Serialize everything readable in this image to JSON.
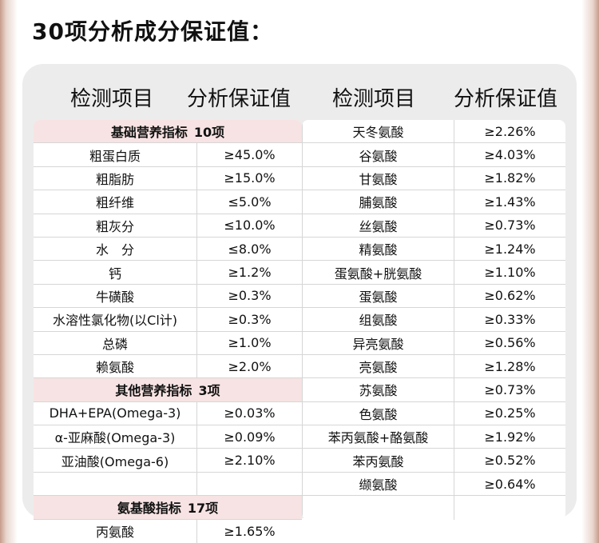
{
  "title": "30项分析成分保证值：",
  "header": {
    "col1": "检测项目",
    "col2": "分析保证值",
    "col3": "检测项目",
    "col4": "分析保证值"
  },
  "left": {
    "section_basic": {
      "name": "基础营养指标",
      "count": "10项"
    },
    "basic": [
      {
        "item": "粗蛋白质",
        "value": "≥45.0%"
      },
      {
        "item": "粗脂肪",
        "value": "≥15.0%"
      },
      {
        "item": "粗纤维",
        "value": "≤5.0%"
      },
      {
        "item": "粗灰分",
        "value": "≤10.0%"
      },
      {
        "item": "水　分",
        "value": "≤8.0%"
      },
      {
        "item": "钙",
        "value": "≥1.2%"
      },
      {
        "item": "牛磺酸",
        "value": "≥0.3%"
      },
      {
        "item": "水溶性氯化物(以Cl计)",
        "value": "≥0.3%"
      },
      {
        "item": "总磷",
        "value": "≥1.0%"
      },
      {
        "item": "赖氨酸",
        "value": "≥2.0%"
      }
    ],
    "section_other": {
      "name": "其他营养指标",
      "count": "3项"
    },
    "other": [
      {
        "item": "DHA+EPA(Omega-3)",
        "value": "≥0.03%"
      },
      {
        "item": "α-亚麻酸(Omega-3)",
        "value": "≥0.09%"
      },
      {
        "item": "亚油酸(Omega-6)",
        "value": "≥2.10%"
      }
    ],
    "section_amino": {
      "name": "氨基酸指标",
      "count": "17项"
    },
    "amino": [
      {
        "item": "丙氨酸",
        "value": "≥1.65%"
      }
    ]
  },
  "right": [
    {
      "item": "天冬氨酸",
      "value": "≥2.26%"
    },
    {
      "item": "谷氨酸",
      "value": "≥4.03%"
    },
    {
      "item": "甘氨酸",
      "value": "≥1.82%"
    },
    {
      "item": "脯氨酸",
      "value": "≥1.43%"
    },
    {
      "item": "丝氨酸",
      "value": "≥0.73%"
    },
    {
      "item": "精氨酸",
      "value": "≥1.24%"
    },
    {
      "item": "蛋氨酸+胱氨酸",
      "value": "≥1.10%"
    },
    {
      "item": "蛋氨酸",
      "value": "≥0.62%"
    },
    {
      "item": "组氨酸",
      "value": "≥0.33%"
    },
    {
      "item": "异亮氨酸",
      "value": "≥0.56%"
    },
    {
      "item": "亮氨酸",
      "value": "≥1.28%"
    },
    {
      "item": "苏氨酸",
      "value": "≥0.73%"
    },
    {
      "item": "色氨酸",
      "value": "≥0.25%"
    },
    {
      "item": "苯丙氨酸+酪氨酸",
      "value": "≥1.92%"
    },
    {
      "item": "苯丙氨酸",
      "value": "≥0.52%"
    },
    {
      "item": "缬氨酸",
      "value": "≥0.64%"
    }
  ]
}
